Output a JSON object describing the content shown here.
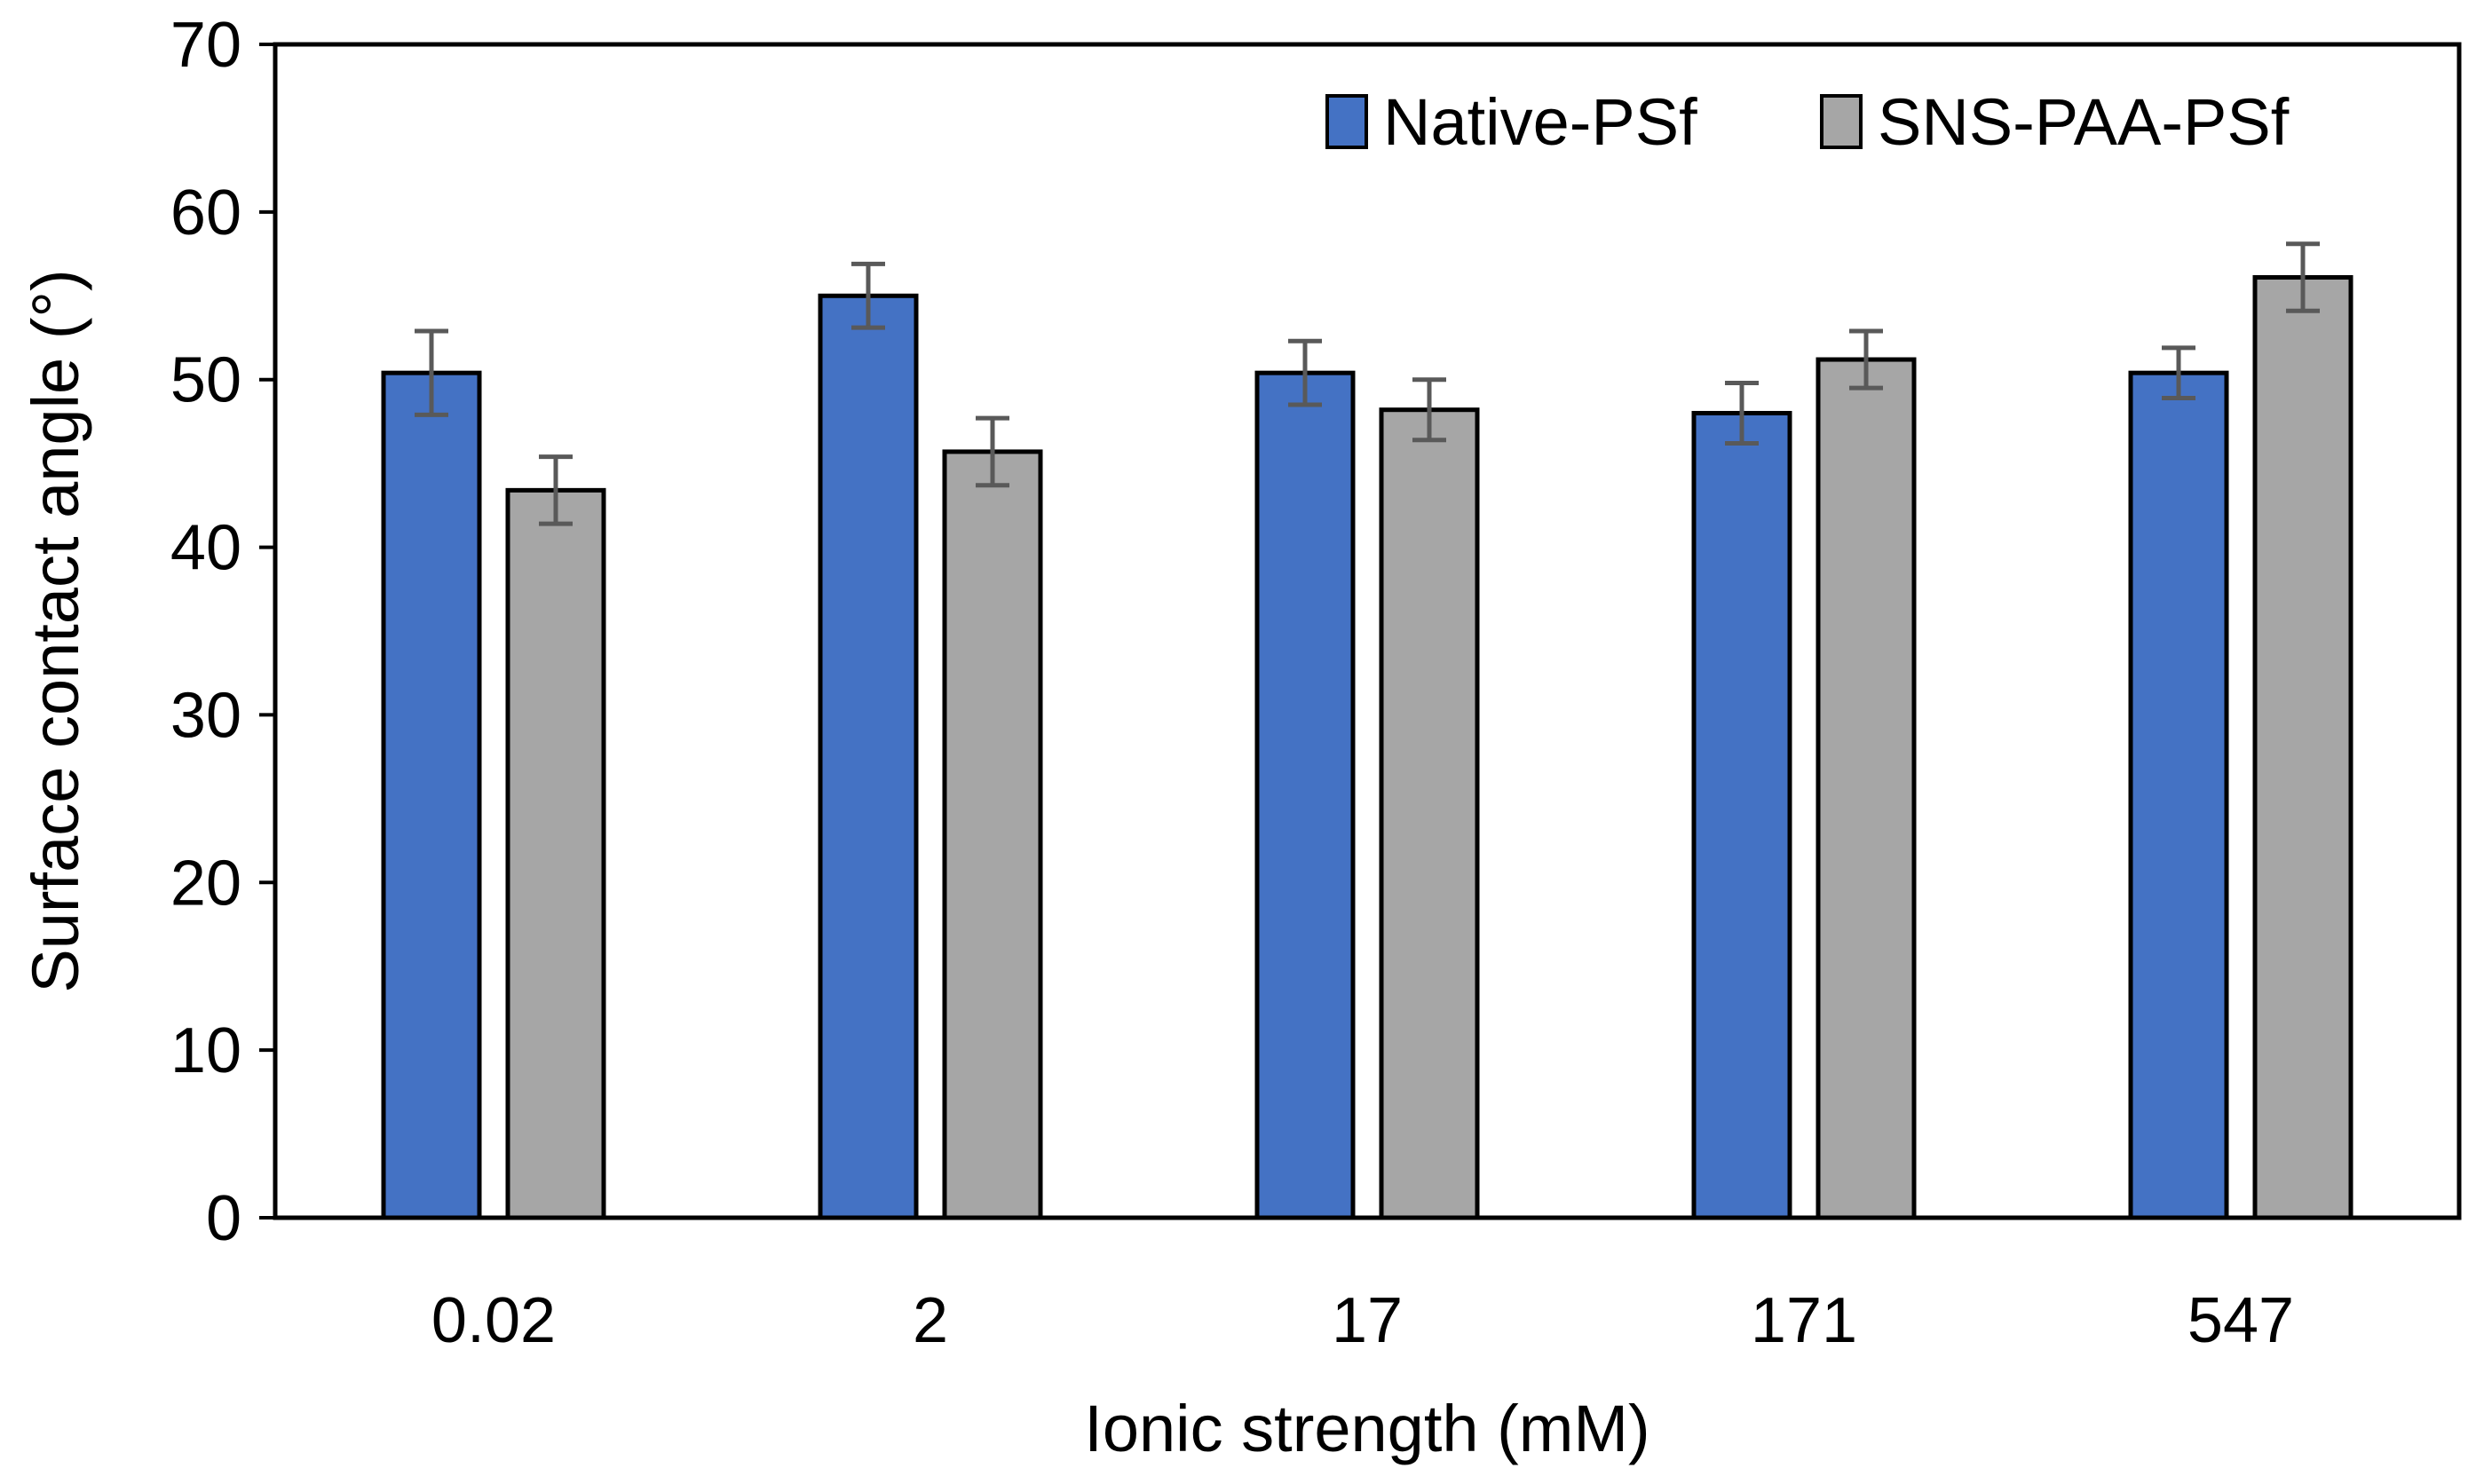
{
  "chart_data": {
    "type": "bar",
    "title": "",
    "xlabel": "Ionic strength (mM)",
    "ylabel": "Surface contact angle (°)",
    "ylim": [
      0,
      70
    ],
    "yticks": [
      0,
      10,
      20,
      30,
      40,
      50,
      60,
      70
    ],
    "grid": false,
    "legend_position": "top-right",
    "categories": [
      "0.02",
      "2",
      "17",
      "171",
      "547"
    ],
    "series": [
      {
        "name": "Native-PSf",
        "color": "#4472C4",
        "values": [
          50.4,
          55.0,
          50.4,
          48.0,
          50.4
        ],
        "errors": [
          2.5,
          1.9,
          1.9,
          1.8,
          1.5
        ]
      },
      {
        "name": "SNS-PAA-PSf",
        "color": "#A6A6A6",
        "values": [
          43.4,
          45.7,
          48.2,
          51.2,
          56.1
        ],
        "errors": [
          2.0,
          2.0,
          1.8,
          1.7,
          2.0
        ]
      }
    ],
    "error_bar_color": "#595959"
  }
}
